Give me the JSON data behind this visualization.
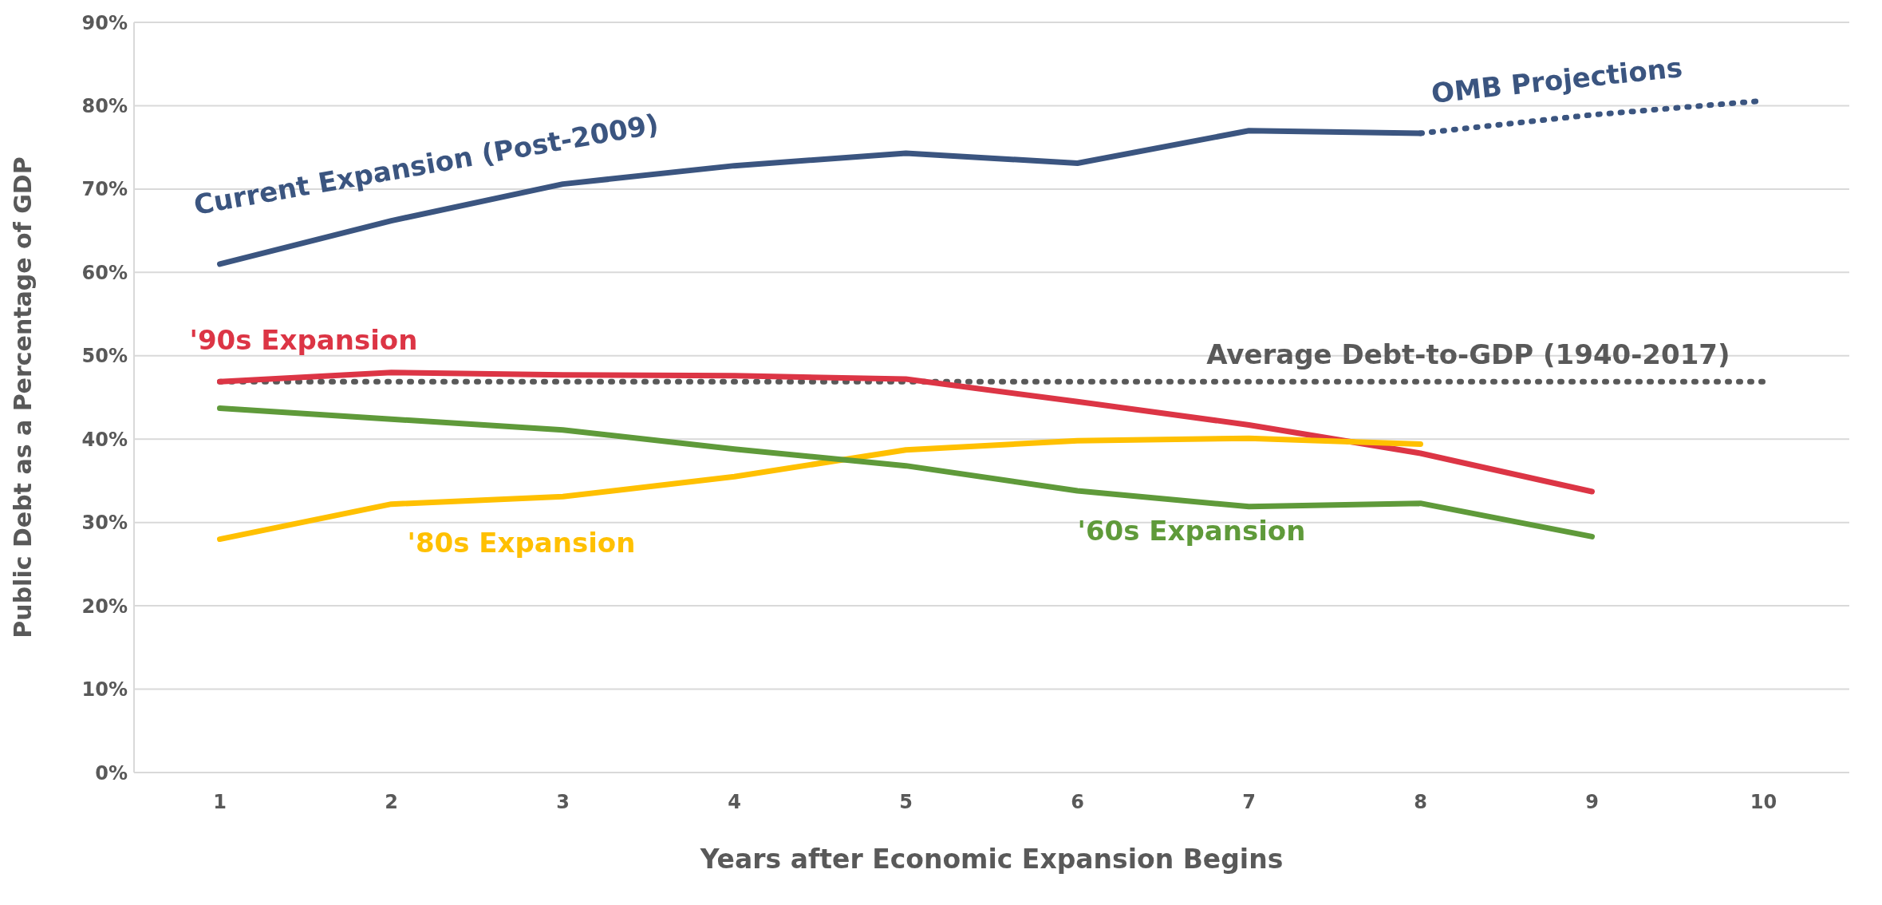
{
  "chart_data": {
    "type": "line",
    "xlabel": "Years after Economic Expansion Begins",
    "ylabel": "Public Debt as a Percentage of GDP",
    "xlim": [
      0.5,
      10.5
    ],
    "xticks": [
      1,
      2,
      3,
      4,
      5,
      6,
      7,
      8,
      9,
      10
    ],
    "ylim": [
      0,
      90
    ],
    "yticks": [
      {
        "value": 0,
        "label": "0%"
      },
      {
        "value": 10,
        "label": "10%"
      },
      {
        "value": 20,
        "label": "20%"
      },
      {
        "value": 30,
        "label": "30%"
      },
      {
        "value": 40,
        "label": "40%"
      },
      {
        "value": 50,
        "label": "50%"
      },
      {
        "value": 60,
        "label": "60%"
      },
      {
        "value": 70,
        "label": "70%"
      },
      {
        "value": 80,
        "label": "80%"
      },
      {
        "value": 90,
        "label": "90%"
      }
    ],
    "grid": "y",
    "marker": "none",
    "series": [
      {
        "name": "Current Expansion (Post-2009)",
        "color": "#3b5580",
        "line_style": "solid",
        "x": [
          1,
          2,
          3,
          4,
          5,
          6,
          7,
          8
        ],
        "values": [
          61.0,
          66.2,
          70.6,
          72.8,
          74.3,
          73.1,
          77.0,
          76.7
        ]
      },
      {
        "name": "OMB Projections",
        "color": "#3b5580",
        "line_style": "dotted",
        "x": [
          8,
          9,
          10
        ],
        "values": [
          76.7,
          78.9,
          80.6
        ]
      },
      {
        "name": "'90s Expansion",
        "color": "#dc3545",
        "line_style": "solid",
        "x": [
          1,
          2,
          3,
          4,
          5,
          6,
          7,
          8,
          9
        ],
        "values": [
          46.9,
          48.0,
          47.7,
          47.6,
          47.2,
          44.5,
          41.7,
          38.3,
          33.7
        ]
      },
      {
        "name": "'80s Expansion",
        "color": "#ffc000",
        "line_style": "solid",
        "x": [
          1,
          2,
          3,
          4,
          5,
          6,
          7,
          8
        ],
        "values": [
          28.0,
          32.2,
          33.1,
          35.5,
          38.7,
          39.8,
          40.1,
          39.4
        ]
      },
      {
        "name": "'60s Expansion",
        "color": "#5f9a3a",
        "line_style": "solid",
        "x": [
          1,
          2,
          3,
          4,
          5,
          6,
          7,
          8,
          9
        ],
        "values": [
          43.7,
          42.4,
          41.1,
          38.8,
          36.8,
          33.8,
          31.9,
          32.3,
          28.3
        ]
      }
    ],
    "ref_lines": [
      {
        "axis": "y",
        "value": 46.9,
        "label": "Average Debt-to-GDP (1940-2017)",
        "color": "#595959",
        "line_style": "dotted"
      }
    ]
  }
}
